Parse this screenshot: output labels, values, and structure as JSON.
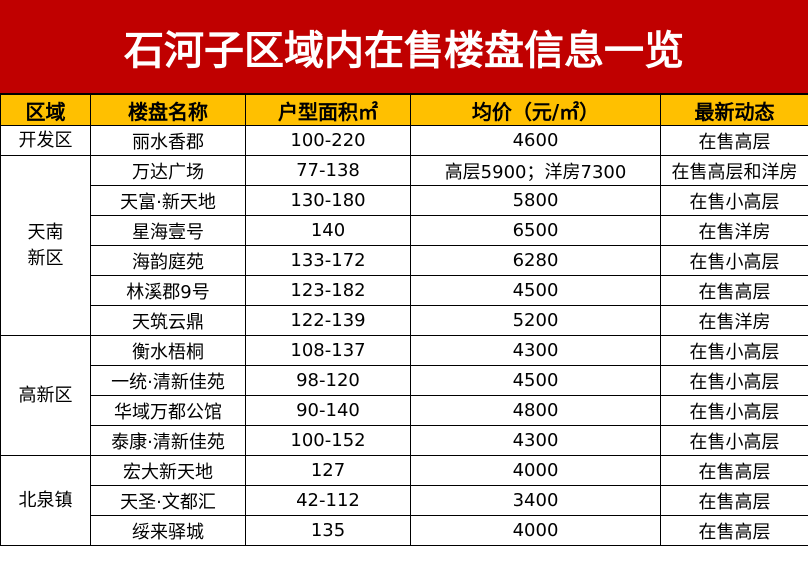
{
  "header": {
    "title": "石河子区域内在售楼盘信息一览"
  },
  "table": {
    "columns": [
      "区域",
      "楼盘名称",
      "户型面积㎡",
      "均价（元/㎡）",
      "最新动态"
    ],
    "groups": [
      {
        "region": [
          "开发区"
        ],
        "rows": [
          [
            "丽水香郡",
            "100-220",
            "4600",
            "在售高层"
          ]
        ]
      },
      {
        "region": [
          "天南",
          "新区"
        ],
        "rows": [
          [
            "万达广场",
            "77-138",
            "高层5900；洋房7300",
            "在售高层和洋房"
          ],
          [
            "天富·新天地",
            "130-180",
            "5800",
            "在售小高层"
          ],
          [
            "星海壹号",
            "140",
            "6500",
            "在售洋房"
          ],
          [
            "海韵庭苑",
            "133-172",
            "6280",
            "在售小高层"
          ],
          [
            "林溪郡9号",
            "123-182",
            "4500",
            "在售高层"
          ],
          [
            "天筑云鼎",
            "122-139",
            "5200",
            "在售洋房"
          ]
        ]
      },
      {
        "region": [
          "高新区"
        ],
        "rows": [
          [
            "衡水梧桐",
            "108-137",
            "4300",
            "在售小高层"
          ],
          [
            "一统·清新佳苑",
            "98-120",
            "4500",
            "在售小高层"
          ],
          [
            "华域万都公馆",
            "90-140",
            "4800",
            "在售小高层"
          ],
          [
            "泰康·清新佳苑",
            "100-152",
            "4300",
            "在售小高层"
          ]
        ]
      },
      {
        "region": [
          "北泉镇"
        ],
        "rows": [
          [
            "宏大新天地",
            "127",
            "4000",
            "在售高层"
          ],
          [
            "天圣·文都汇",
            "42-112",
            "3400",
            "在售高层"
          ],
          [
            "绥来驿城",
            "135",
            "4000",
            "在售高层"
          ]
        ]
      }
    ]
  }
}
